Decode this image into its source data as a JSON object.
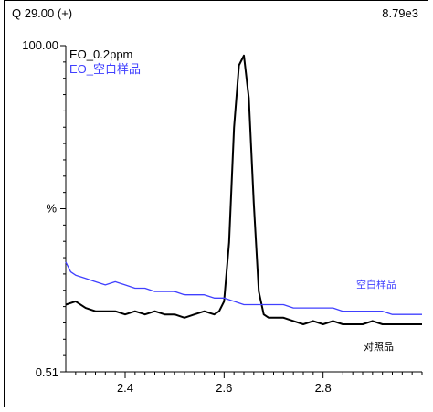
{
  "header": {
    "left": "Q 29.00 (+)",
    "right": "8.79e3"
  },
  "chart_data": {
    "type": "line",
    "xlim": [
      2.28,
      3.0
    ],
    "ylim": [
      0.51,
      100.0
    ],
    "ytick_labels": [
      "100.00",
      "%",
      "0.51"
    ],
    "xticks": [
      2.4,
      2.6,
      2.8
    ],
    "xtick_labels": [
      "2.4",
      "2.6",
      "2.8"
    ],
    "legend": {
      "placement": "top-left",
      "entries": [
        "EO_0.2ppm",
        "EO_空白样品"
      ]
    },
    "annotations": [
      "空白样品",
      "对照品"
    ],
    "series": [
      {
        "name": "EO_0.2ppm",
        "color": "#000000",
        "x": [
          2.28,
          2.3,
          2.32,
          2.34,
          2.36,
          2.38,
          2.4,
          2.42,
          2.44,
          2.46,
          2.48,
          2.5,
          2.52,
          2.54,
          2.56,
          2.58,
          2.59,
          2.6,
          2.61,
          2.62,
          2.63,
          2.64,
          2.65,
          2.66,
          2.67,
          2.68,
          2.69,
          2.7,
          2.72,
          2.74,
          2.76,
          2.78,
          2.8,
          2.82,
          2.84,
          2.86,
          2.88,
          2.9,
          2.92,
          2.94,
          2.96,
          2.98,
          3.0
        ],
        "y": [
          21,
          22,
          20,
          19,
          19,
          19,
          18,
          19,
          18,
          19,
          18,
          18,
          17,
          18,
          19,
          18,
          19,
          22,
          40,
          75,
          94,
          97,
          84,
          52,
          25,
          18,
          17,
          17,
          17,
          16,
          15,
          16,
          15,
          16,
          15,
          15,
          15,
          16,
          15,
          15,
          15,
          15,
          15
        ]
      },
      {
        "name": "EO_空白样品",
        "color": "#4040ff",
        "x": [
          2.28,
          2.29,
          2.3,
          2.32,
          2.34,
          2.36,
          2.38,
          2.4,
          2.42,
          2.44,
          2.46,
          2.48,
          2.5,
          2.52,
          2.54,
          2.56,
          2.58,
          2.6,
          2.62,
          2.64,
          2.66,
          2.68,
          2.7,
          2.72,
          2.74,
          2.76,
          2.78,
          2.8,
          2.82,
          2.84,
          2.86,
          2.88,
          2.9,
          2.92,
          2.94,
          2.96,
          2.98,
          3.0
        ],
        "y": [
          34,
          31,
          30,
          29,
          28,
          27,
          28,
          27,
          26,
          26,
          25,
          25,
          25,
          24,
          24,
          24,
          23,
          23,
          22,
          21,
          21,
          21,
          21,
          21,
          20,
          20,
          20,
          20,
          20,
          19,
          19,
          19,
          19,
          19,
          18,
          18,
          18,
          18
        ]
      }
    ]
  }
}
